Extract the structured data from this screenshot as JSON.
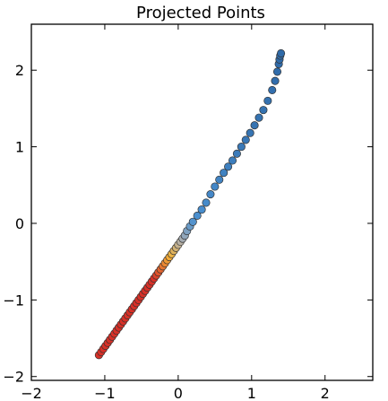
{
  "chart_data": {
    "type": "scatter",
    "title": "Projected Points",
    "xlabel": "",
    "ylabel": "",
    "xlim": [
      -2.0,
      2.65
    ],
    "ylim": [
      -2.05,
      2.6
    ],
    "xticks": [
      -2,
      -1,
      0,
      1,
      2
    ],
    "yticks": [
      -2,
      -1,
      0,
      1,
      2
    ],
    "xtick_labels": [
      "−2",
      "−1",
      "0",
      "1",
      "2"
    ],
    "ytick_labels": [
      "−2",
      "−1",
      "0",
      "1",
      "2"
    ],
    "grid": false,
    "marker": "circle",
    "colormap_note": "colored from red (low) through yellow and gray to blue (high) along the line",
    "colors": {
      "low": "#d73027",
      "mid_low": "#f4b43a",
      "mid": "#b0b0b0",
      "mid_high": "#4a90d0",
      "high": "#2f6aa8",
      "edge": "#333333"
    },
    "series": [
      {
        "points": [
          [
            -1.08,
            -1.72
          ],
          [
            -1.05,
            -1.68
          ],
          [
            -1.02,
            -1.64
          ],
          [
            -0.99,
            -1.6
          ],
          [
            -0.96,
            -1.56
          ],
          [
            -0.93,
            -1.52
          ],
          [
            -0.9,
            -1.48
          ],
          [
            -0.87,
            -1.44
          ],
          [
            -0.84,
            -1.4
          ],
          [
            -0.81,
            -1.36
          ],
          [
            -0.78,
            -1.32
          ],
          [
            -0.75,
            -1.28
          ],
          [
            -0.72,
            -1.24
          ],
          [
            -0.69,
            -1.2
          ],
          [
            -0.66,
            -1.16
          ],
          [
            -0.63,
            -1.12
          ],
          [
            -0.6,
            -1.08
          ],
          [
            -0.57,
            -1.04
          ],
          [
            -0.54,
            -1.0
          ],
          [
            -0.51,
            -0.96
          ],
          [
            -0.48,
            -0.92
          ],
          [
            -0.45,
            -0.88
          ],
          [
            -0.42,
            -0.84
          ],
          [
            -0.39,
            -0.8
          ],
          [
            -0.36,
            -0.76
          ],
          [
            -0.33,
            -0.72
          ],
          [
            -0.3,
            -0.68
          ],
          [
            -0.27,
            -0.64
          ],
          [
            -0.24,
            -0.6
          ],
          [
            -0.21,
            -0.56
          ],
          [
            -0.18,
            -0.52
          ],
          [
            -0.15,
            -0.48
          ],
          [
            -0.12,
            -0.44
          ],
          [
            -0.09,
            -0.4
          ],
          [
            -0.06,
            -0.36
          ],
          [
            -0.03,
            -0.32
          ],
          [
            0.0,
            -0.28
          ],
          [
            0.03,
            -0.24
          ],
          [
            0.06,
            -0.2
          ],
          [
            0.09,
            -0.16
          ],
          [
            0.12,
            -0.1
          ],
          [
            0.16,
            -0.04
          ],
          [
            0.2,
            0.02
          ],
          [
            0.26,
            0.1
          ],
          [
            0.32,
            0.18
          ],
          [
            0.38,
            0.27
          ],
          [
            0.44,
            0.38
          ],
          [
            0.5,
            0.48
          ],
          [
            0.56,
            0.57
          ],
          [
            0.62,
            0.66
          ],
          [
            0.68,
            0.74
          ],
          [
            0.74,
            0.82
          ],
          [
            0.8,
            0.91
          ],
          [
            0.86,
            1.0
          ],
          [
            0.92,
            1.09
          ],
          [
            0.98,
            1.18
          ],
          [
            1.04,
            1.28
          ],
          [
            1.1,
            1.38
          ],
          [
            1.16,
            1.48
          ],
          [
            1.22,
            1.6
          ],
          [
            1.28,
            1.74
          ],
          [
            1.32,
            1.86
          ],
          [
            1.35,
            1.98
          ],
          [
            1.37,
            2.08
          ],
          [
            1.38,
            2.14
          ],
          [
            1.39,
            2.19
          ],
          [
            1.4,
            2.22
          ]
        ],
        "color_values": [
          0.0,
          0.01,
          0.02,
          0.03,
          0.04,
          0.05,
          0.06,
          0.07,
          0.08,
          0.09,
          0.1,
          0.11,
          0.12,
          0.13,
          0.14,
          0.15,
          0.16,
          0.17,
          0.18,
          0.19,
          0.2,
          0.22,
          0.24,
          0.26,
          0.28,
          0.3,
          0.32,
          0.34,
          0.36,
          0.38,
          0.4,
          0.42,
          0.44,
          0.46,
          0.48,
          0.5,
          0.52,
          0.54,
          0.56,
          0.58,
          0.6,
          0.62,
          0.64,
          0.66,
          0.68,
          0.7,
          0.72,
          0.74,
          0.76,
          0.78,
          0.8,
          0.82,
          0.84,
          0.86,
          0.88,
          0.9,
          0.91,
          0.92,
          0.93,
          0.94,
          0.95,
          0.96,
          0.97,
          0.98,
          0.99,
          1.0,
          1.0
        ]
      }
    ]
  }
}
